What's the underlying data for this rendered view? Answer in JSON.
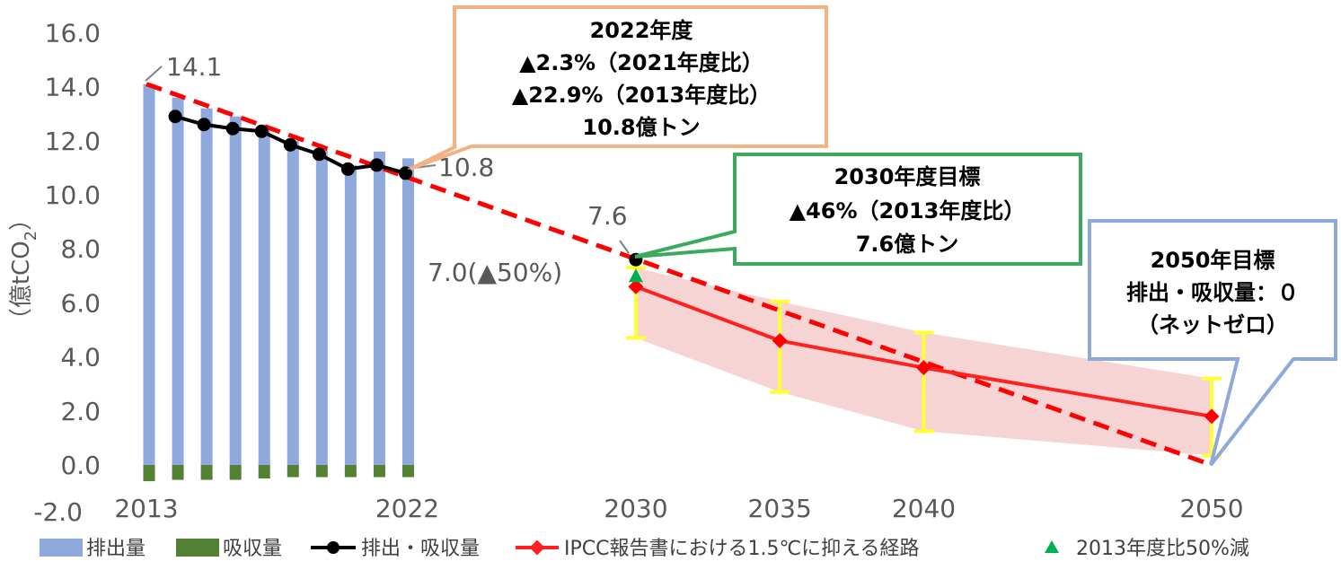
{
  "chart_data": {
    "type": "bar",
    "ylabel_prefix": "（億tCO",
    "ylabel_sub": "2",
    "ylabel_suffix": "）",
    "ylim": [
      -2.0,
      16.0
    ],
    "yticks": [
      "-2.0",
      "0.0",
      "2.0",
      "4.0",
      "6.0",
      "8.0",
      "10.0",
      "12.0",
      "14.0",
      "16.0"
    ],
    "xlabels": [
      "2013",
      "2022",
      "2030",
      "2035",
      "2040",
      "2050"
    ],
    "bar_years": [
      2013,
      2014,
      2015,
      2016,
      2017,
      2018,
      2019,
      2020,
      2021,
      2022
    ],
    "series": [
      {
        "name": "排出量",
        "color": "#8EA9DB",
        "values": [
          14.1,
          13.6,
          13.2,
          12.9,
          12.4,
          12.0,
          11.7,
          11.1,
          11.6,
          11.35
        ]
      },
      {
        "name": "吸収量",
        "color": "#548235",
        "values": [
          -0.6,
          -0.55,
          -0.55,
          -0.55,
          -0.5,
          -0.45,
          -0.45,
          -0.45,
          -0.45,
          -0.45
        ]
      },
      {
        "name": "排出・吸収量",
        "color": "#000000",
        "x": [
          2014,
          2015,
          2016,
          2017,
          2018,
          2019,
          2020,
          2021,
          2022,
          2030
        ],
        "values": [
          12.9,
          12.6,
          12.45,
          12.35,
          11.85,
          11.5,
          10.95,
          11.1,
          10.8,
          7.6
        ]
      },
      {
        "name": "IPCC報告書における1.5℃に抑える経路",
        "color": "#FF0000",
        "x": [
          2030,
          2035,
          2040,
          2050
        ],
        "values": [
          6.6,
          4.6,
          3.6,
          1.8
        ],
        "error_low": [
          4.7,
          2.7,
          1.25,
          0.35
        ],
        "error_high": [
          7.3,
          6.05,
          4.9,
          3.2
        ]
      },
      {
        "name": "2013年度比50%減",
        "color": "#00B050",
        "x": [
          2030
        ],
        "values": [
          7.0
        ]
      }
    ],
    "trend_line": {
      "x": [
        2013,
        2050
      ],
      "values": [
        14.1,
        0.0
      ],
      "color": "#FF0000"
    },
    "annotations": {
      "start": "14.1",
      "latest": "10.8",
      "target_2030": "7.6",
      "half_2030": "7.0(▲50%)"
    },
    "callout_2022": {
      "lines": [
        "2022年度",
        "▲2.3%（2021年度比）",
        "▲22.9%（2013年度比）",
        "10.8億トン"
      ],
      "border": "#F4B183"
    },
    "callout_2030": {
      "lines": [
        "2030年度目標",
        "▲46%（2013年度比）",
        "7.6億トン"
      ],
      "border": "#3BAA5C"
    },
    "callout_2050": {
      "lines": [
        "2050年目標",
        "排出・吸収量：０",
        "（ネットゼロ）"
      ],
      "border": "#8EA9DB"
    }
  }
}
